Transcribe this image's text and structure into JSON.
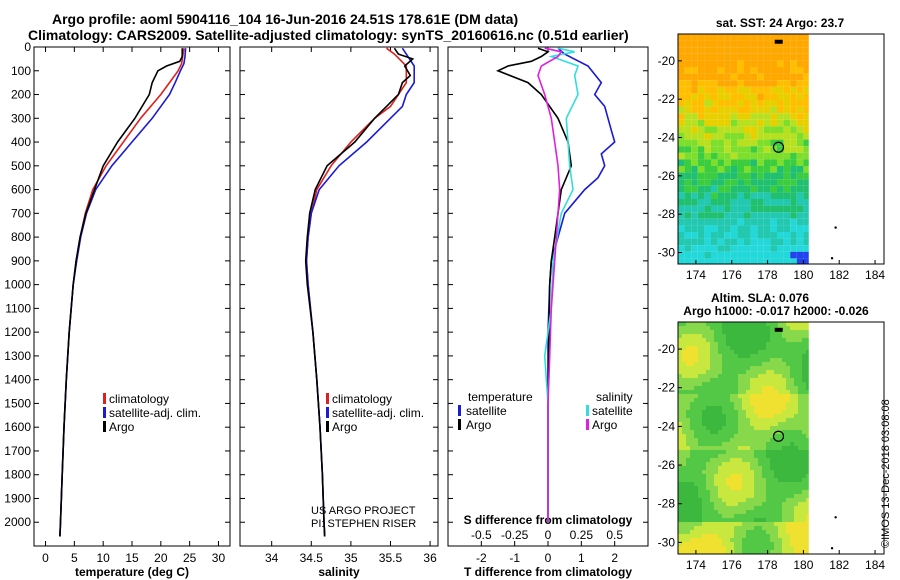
{
  "header": {
    "line1": "Argo profile: aoml 5904116_104 16-Jun-2016 24.51S 178.61E (DM data)",
    "line2": "Climatology: CARS2009. Satellite-adjusted climatology: synTS_20160616.nc (0.51d earlier)"
  },
  "colors": {
    "climatology": "#e02020",
    "satellite": "#1a1ad8",
    "argo": "#000000",
    "sat_salinity": "#33dddd",
    "argo_salinity": "#e020e0"
  },
  "chart_data": [
    {
      "type": "line",
      "title": "temperature profile",
      "xlabel": "temperature (deg C)",
      "ylabel": "",
      "xlim": [
        -2,
        32
      ],
      "ylim": [
        2100,
        0
      ],
      "x_ticks": [
        0,
        5,
        10,
        15,
        20,
        25,
        30
      ],
      "y_ticks": [
        0,
        100,
        200,
        300,
        400,
        500,
        600,
        700,
        800,
        900,
        1000,
        1100,
        1200,
        1300,
        1400,
        1500,
        1600,
        1700,
        1800,
        1900,
        2000
      ],
      "legend": [
        "climatology",
        "satellite-adj. clim.",
        "Argo"
      ],
      "series": [
        {
          "name": "climatology",
          "depth": [
            5,
            40,
            70,
            100,
            150,
            200,
            300,
            400,
            500,
            600,
            700,
            800,
            900,
            1000,
            1200,
            1400,
            1600,
            1800,
            2000,
            2060
          ],
          "values": [
            24,
            23.8,
            23.6,
            23.0,
            21.5,
            20,
            16.5,
            13.5,
            10.5,
            8.2,
            6.9,
            6.0,
            5.3,
            4.8,
            4.1,
            3.6,
            3.2,
            2.9,
            2.6,
            2.5
          ]
        },
        {
          "name": "satellite-adj. clim.",
          "depth": [
            5,
            40,
            70,
            100,
            150,
            200,
            300,
            400,
            500,
            600,
            700,
            800,
            900,
            1000,
            1200,
            1400,
            1600,
            1800,
            2000,
            2060
          ],
          "values": [
            24.3,
            24.2,
            24.0,
            23.4,
            22.5,
            21.5,
            18.5,
            15,
            11.5,
            8.7,
            7.1,
            6.1,
            5.4,
            4.8,
            4.1,
            3.6,
            3.2,
            2.9,
            2.6,
            2.5
          ]
        },
        {
          "name": "Argo",
          "depth": [
            5,
            40,
            60,
            80,
            100,
            150,
            200,
            300,
            400,
            500,
            600,
            700,
            800,
            900,
            1000,
            1200,
            1400,
            1600,
            1800,
            2000,
            2060
          ],
          "values": [
            23.7,
            23.7,
            23.3,
            21,
            19.5,
            18.5,
            18.0,
            15.5,
            12.5,
            10,
            8.5,
            7.0,
            6.0,
            5.3,
            4.8,
            4.1,
            3.6,
            3.2,
            2.9,
            2.6,
            2.5
          ]
        }
      ]
    },
    {
      "type": "line",
      "title": "salinity profile",
      "xlabel": "salinity",
      "ylabel": "",
      "xlim": [
        33.6,
        36.1
      ],
      "ylim": [
        2100,
        0
      ],
      "x_ticks": [
        34,
        34.5,
        35,
        35.5,
        36
      ],
      "legend": [
        "climatology",
        "satellite-adj. clim.",
        "Argo"
      ],
      "series": [
        {
          "name": "climatology",
          "depth": [
            5,
            30,
            80,
            150,
            200,
            250,
            300,
            400,
            500,
            600,
            700,
            800,
            900,
            1000,
            1200,
            1400,
            1600,
            1800,
            2000,
            2060
          ],
          "values": [
            35.45,
            35.55,
            35.7,
            35.7,
            35.6,
            35.5,
            35.3,
            35.0,
            34.75,
            34.57,
            34.5,
            34.46,
            34.44,
            34.46,
            34.52,
            34.57,
            34.61,
            34.64,
            34.66,
            34.67
          ]
        },
        {
          "name": "satellite-adj. clim.",
          "depth": [
            5,
            30,
            80,
            150,
            200,
            250,
            300,
            400,
            500,
            600,
            700,
            800,
            900,
            1000,
            1200,
            1400,
            1600,
            1800,
            2000,
            2060
          ],
          "values": [
            35.65,
            35.7,
            35.8,
            35.8,
            35.7,
            35.65,
            35.5,
            35.2,
            34.85,
            34.6,
            34.5,
            34.46,
            34.44,
            34.46,
            34.52,
            34.57,
            34.61,
            34.64,
            34.66,
            34.67
          ]
        },
        {
          "name": "Argo",
          "depth": [
            5,
            30,
            50,
            80,
            120,
            150,
            200,
            250,
            300,
            400,
            500,
            600,
            700,
            800,
            900,
            1000,
            1200,
            1400,
            1600,
            1800,
            2000,
            2060
          ],
          "values": [
            35.55,
            35.6,
            35.78,
            35.68,
            35.75,
            35.65,
            35.6,
            35.45,
            35.3,
            35.05,
            34.7,
            34.55,
            34.48,
            34.45,
            34.43,
            34.45,
            34.52,
            34.57,
            34.61,
            34.64,
            34.66,
            34.67
          ]
        }
      ]
    },
    {
      "type": "line",
      "title": "difference from climatology",
      "xlabel": "T difference from climatology",
      "x2label": "S difference from climatology",
      "xlim": [
        -3,
        3
      ],
      "ylim": [
        2100,
        0
      ],
      "x_ticks": [
        -2,
        -1,
        0,
        1,
        2
      ],
      "x2_tick_labels": [
        "-0.5",
        "-0.25",
        "0",
        "0.25",
        "0.5"
      ],
      "legend_titles": [
        "temperature",
        "salinity"
      ],
      "legend": [
        "satellite",
        "Argo",
        "satellite",
        "Argo"
      ],
      "series": [
        {
          "name": "T satellite",
          "depth": [
            5,
            30,
            80,
            150,
            200,
            250,
            300,
            350,
            400,
            450,
            500,
            550,
            600,
            700,
            800,
            900,
            1000,
            1200,
            1500,
            2000
          ],
          "values": [
            0.3,
            0.5,
            1.2,
            1.6,
            1.4,
            1.7,
            1.8,
            1.9,
            2.0,
            1.6,
            1.7,
            1.5,
            1.1,
            0.5,
            0.3,
            0.1,
            0.05,
            0,
            0,
            0
          ]
        },
        {
          "name": "T Argo",
          "depth": [
            5,
            20,
            40,
            60,
            80,
            100,
            150,
            200,
            300,
            400,
            500,
            600,
            700,
            800,
            900,
            1000,
            1200,
            1500,
            2000
          ],
          "values": [
            -0.3,
            0,
            -0.2,
            -0.5,
            -1.2,
            -1.5,
            -0.6,
            -0.2,
            0.3,
            0.6,
            0.7,
            0.4,
            0.3,
            0.2,
            0.1,
            0.05,
            0.03,
            0,
            0
          ]
        },
        {
          "name": "S satellite",
          "depth": [
            5,
            20,
            40,
            80,
            120,
            200,
            300,
            400,
            500,
            600,
            700,
            900,
            1100,
            1300,
            1500,
            2000
          ],
          "values": [
            0.3,
            0.8,
            0.1,
            0.9,
            0.8,
            0.9,
            0.55,
            0.6,
            0.65,
            0.75,
            0.4,
            0.15,
            0.1,
            -0.1,
            0,
            0
          ]
        },
        {
          "name": "S Argo",
          "depth": [
            5,
            20,
            40,
            80,
            120,
            200,
            300,
            400,
            500,
            600,
            700,
            900,
            1100,
            1300,
            1500,
            2000
          ],
          "values": [
            -0.1,
            0.4,
            0.3,
            -0.2,
            -0.3,
            -0.1,
            0.1,
            0.2,
            0.3,
            0.35,
            0.3,
            0.2,
            0.1,
            0.05,
            0,
            0
          ]
        }
      ]
    },
    {
      "type": "heatmap",
      "title": "sat. SST: 24 Argo: 23.7",
      "x_ticks": [
        174,
        176,
        178,
        180,
        182,
        184
      ],
      "y_ticks": [
        -20,
        -22,
        -24,
        -26,
        -28,
        -30
      ],
      "xlim": [
        173,
        184.5
      ],
      "ylim": [
        -30.6,
        -18.6
      ],
      "argo_position": [
        178.61,
        -24.51
      ]
    },
    {
      "type": "heatmap",
      "title_line1": "Altim. SLA: 0.076",
      "title_line2": "Argo h1000: -0.017 h2000: -0.026",
      "x_ticks": [
        174,
        176,
        178,
        180,
        182,
        184
      ],
      "y_ticks": [
        -20,
        -22,
        -24,
        -26,
        -28,
        -30
      ],
      "xlim": [
        173,
        184.5
      ],
      "ylim": [
        -30.6,
        -18.6
      ],
      "argo_position": [
        178.61,
        -24.51
      ]
    }
  ],
  "texts": {
    "legend_t1": "climatology",
    "legend_t2": "satellite-adj. clim.",
    "legend_t3": "Argo",
    "legend_s1": "climatology",
    "legend_s2": "satellite-adj. clim.",
    "legend_s3": "Argo",
    "legend_d_temp": "temperature",
    "legend_d_sal": "salinity",
    "legend_d1": "satellite",
    "legend_d2": "Argo",
    "legend_d3": "satellite",
    "legend_d4": "Argo",
    "credit1": "US ARGO PROJECT",
    "credit2": "PI: STEPHEN RISER",
    "watermark": "©IMOS 13-Dec-2018 03:08:08"
  }
}
